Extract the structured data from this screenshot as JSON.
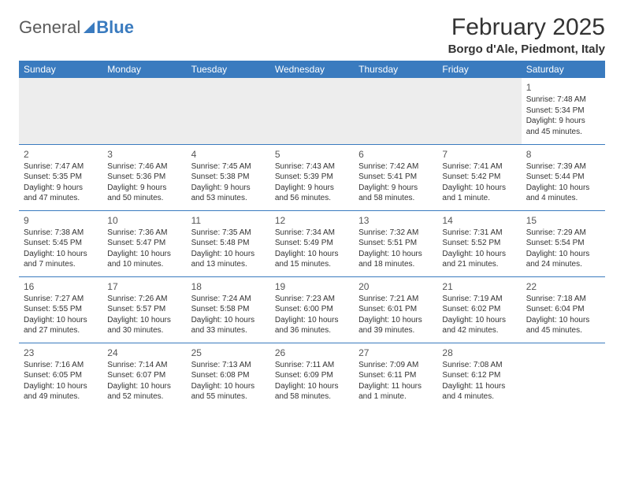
{
  "logo": {
    "part1": "General",
    "part2": "Blue"
  },
  "title": "February 2025",
  "location": "Borgo d'Ale, Piedmont, Italy",
  "colors": {
    "header_bg": "#3a7bbf",
    "header_text": "#ffffff",
    "row_divider": "#3a7bbf",
    "blank_bg": "#ededed",
    "text": "#333333"
  },
  "weekdays": [
    "Sunday",
    "Monday",
    "Tuesday",
    "Wednesday",
    "Thursday",
    "Friday",
    "Saturday"
  ],
  "weeks": [
    [
      null,
      null,
      null,
      null,
      null,
      null,
      {
        "n": "1",
        "sr": "7:48 AM",
        "ss": "5:34 PM",
        "dl": "9 hours and 45 minutes."
      }
    ],
    [
      {
        "n": "2",
        "sr": "7:47 AM",
        "ss": "5:35 PM",
        "dl": "9 hours and 47 minutes."
      },
      {
        "n": "3",
        "sr": "7:46 AM",
        "ss": "5:36 PM",
        "dl": "9 hours and 50 minutes."
      },
      {
        "n": "4",
        "sr": "7:45 AM",
        "ss": "5:38 PM",
        "dl": "9 hours and 53 minutes."
      },
      {
        "n": "5",
        "sr": "7:43 AM",
        "ss": "5:39 PM",
        "dl": "9 hours and 56 minutes."
      },
      {
        "n": "6",
        "sr": "7:42 AM",
        "ss": "5:41 PM",
        "dl": "9 hours and 58 minutes."
      },
      {
        "n": "7",
        "sr": "7:41 AM",
        "ss": "5:42 PM",
        "dl": "10 hours and 1 minute."
      },
      {
        "n": "8",
        "sr": "7:39 AM",
        "ss": "5:44 PM",
        "dl": "10 hours and 4 minutes."
      }
    ],
    [
      {
        "n": "9",
        "sr": "7:38 AM",
        "ss": "5:45 PM",
        "dl": "10 hours and 7 minutes."
      },
      {
        "n": "10",
        "sr": "7:36 AM",
        "ss": "5:47 PM",
        "dl": "10 hours and 10 minutes."
      },
      {
        "n": "11",
        "sr": "7:35 AM",
        "ss": "5:48 PM",
        "dl": "10 hours and 13 minutes."
      },
      {
        "n": "12",
        "sr": "7:34 AM",
        "ss": "5:49 PM",
        "dl": "10 hours and 15 minutes."
      },
      {
        "n": "13",
        "sr": "7:32 AM",
        "ss": "5:51 PM",
        "dl": "10 hours and 18 minutes."
      },
      {
        "n": "14",
        "sr": "7:31 AM",
        "ss": "5:52 PM",
        "dl": "10 hours and 21 minutes."
      },
      {
        "n": "15",
        "sr": "7:29 AM",
        "ss": "5:54 PM",
        "dl": "10 hours and 24 minutes."
      }
    ],
    [
      {
        "n": "16",
        "sr": "7:27 AM",
        "ss": "5:55 PM",
        "dl": "10 hours and 27 minutes."
      },
      {
        "n": "17",
        "sr": "7:26 AM",
        "ss": "5:57 PM",
        "dl": "10 hours and 30 minutes."
      },
      {
        "n": "18",
        "sr": "7:24 AM",
        "ss": "5:58 PM",
        "dl": "10 hours and 33 minutes."
      },
      {
        "n": "19",
        "sr": "7:23 AM",
        "ss": "6:00 PM",
        "dl": "10 hours and 36 minutes."
      },
      {
        "n": "20",
        "sr": "7:21 AM",
        "ss": "6:01 PM",
        "dl": "10 hours and 39 minutes."
      },
      {
        "n": "21",
        "sr": "7:19 AM",
        "ss": "6:02 PM",
        "dl": "10 hours and 42 minutes."
      },
      {
        "n": "22",
        "sr": "7:18 AM",
        "ss": "6:04 PM",
        "dl": "10 hours and 45 minutes."
      }
    ],
    [
      {
        "n": "23",
        "sr": "7:16 AM",
        "ss": "6:05 PM",
        "dl": "10 hours and 49 minutes."
      },
      {
        "n": "24",
        "sr": "7:14 AM",
        "ss": "6:07 PM",
        "dl": "10 hours and 52 minutes."
      },
      {
        "n": "25",
        "sr": "7:13 AM",
        "ss": "6:08 PM",
        "dl": "10 hours and 55 minutes."
      },
      {
        "n": "26",
        "sr": "7:11 AM",
        "ss": "6:09 PM",
        "dl": "10 hours and 58 minutes."
      },
      {
        "n": "27",
        "sr": "7:09 AM",
        "ss": "6:11 PM",
        "dl": "11 hours and 1 minute."
      },
      {
        "n": "28",
        "sr": "7:08 AM",
        "ss": "6:12 PM",
        "dl": "11 hours and 4 minutes."
      },
      null
    ]
  ],
  "labels": {
    "sunrise": "Sunrise:",
    "sunset": "Sunset:",
    "daylight": "Daylight:"
  }
}
